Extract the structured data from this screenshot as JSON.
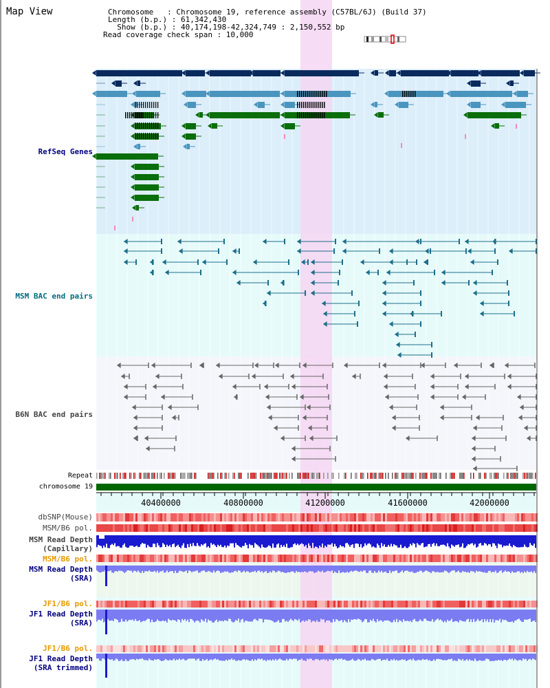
{
  "header": {
    "title": "Map View",
    "info_lines": [
      "Chromosome   : Chromosome 19, reference assembly (C57BL/6J) (Build 37)",
      "Length (b.p.) : 61,342,430",
      "  Show (b.p.) : 40,174,198-42,324,749 : 2,150,552 bp",
      "Read coverage check span : 10,000"
    ]
  },
  "tracks": {
    "refseq": "RefSeq Genes",
    "msm_bac": "MSM BAC end pairs",
    "b6n_bac": "B6N BAC end pairs",
    "repeat": "Repeat",
    "chromosome": "chromosome 19",
    "dbsnp": "dbSNP(Mouse)",
    "msm_b6_pol_1": "MSM/B6 pol.",
    "msm_depth_cap": [
      "MSM Read Depth",
      "(Capillary)"
    ],
    "msm_b6_pol_2": "MSM/B6 pol.",
    "msm_depth_sra": [
      "MSM Read Depth",
      "(SRA)"
    ],
    "jf1_b6_pol_1": "JF1/B6 pol.",
    "jf1_depth_sra": [
      "JF1 Read Depth",
      "(SRA)"
    ],
    "jf1_b6_pol_2": "JF1/B6 pol.",
    "jf1_depth_trim": [
      "JF1 Read Depth",
      "(SRA trimmed)"
    ]
  },
  "axis": {
    "ticks": [
      "40400000",
      "40800000",
      "41200000",
      "41600000",
      "42000000"
    ]
  },
  "colors": {
    "refseq_bg": "#dceefa",
    "msm_bg": "#e6fafa",
    "b6n_bg": "#f4f6fb",
    "highlight": "#f5d6f2",
    "dark_gene": "#0a2a5e",
    "mid_gene": "#4a95be",
    "green_gene": "#0a6e0a",
    "bac_teal": "#1d6e8a",
    "bac_gray": "#666666",
    "depth_blue": "#1a1ad0",
    "depth_lilac": "#7b7bf2",
    "label_navy": "#000080",
    "label_teal": "#006b80",
    "label_orange": "#e69a00",
    "label_gray": "#444444"
  }
}
